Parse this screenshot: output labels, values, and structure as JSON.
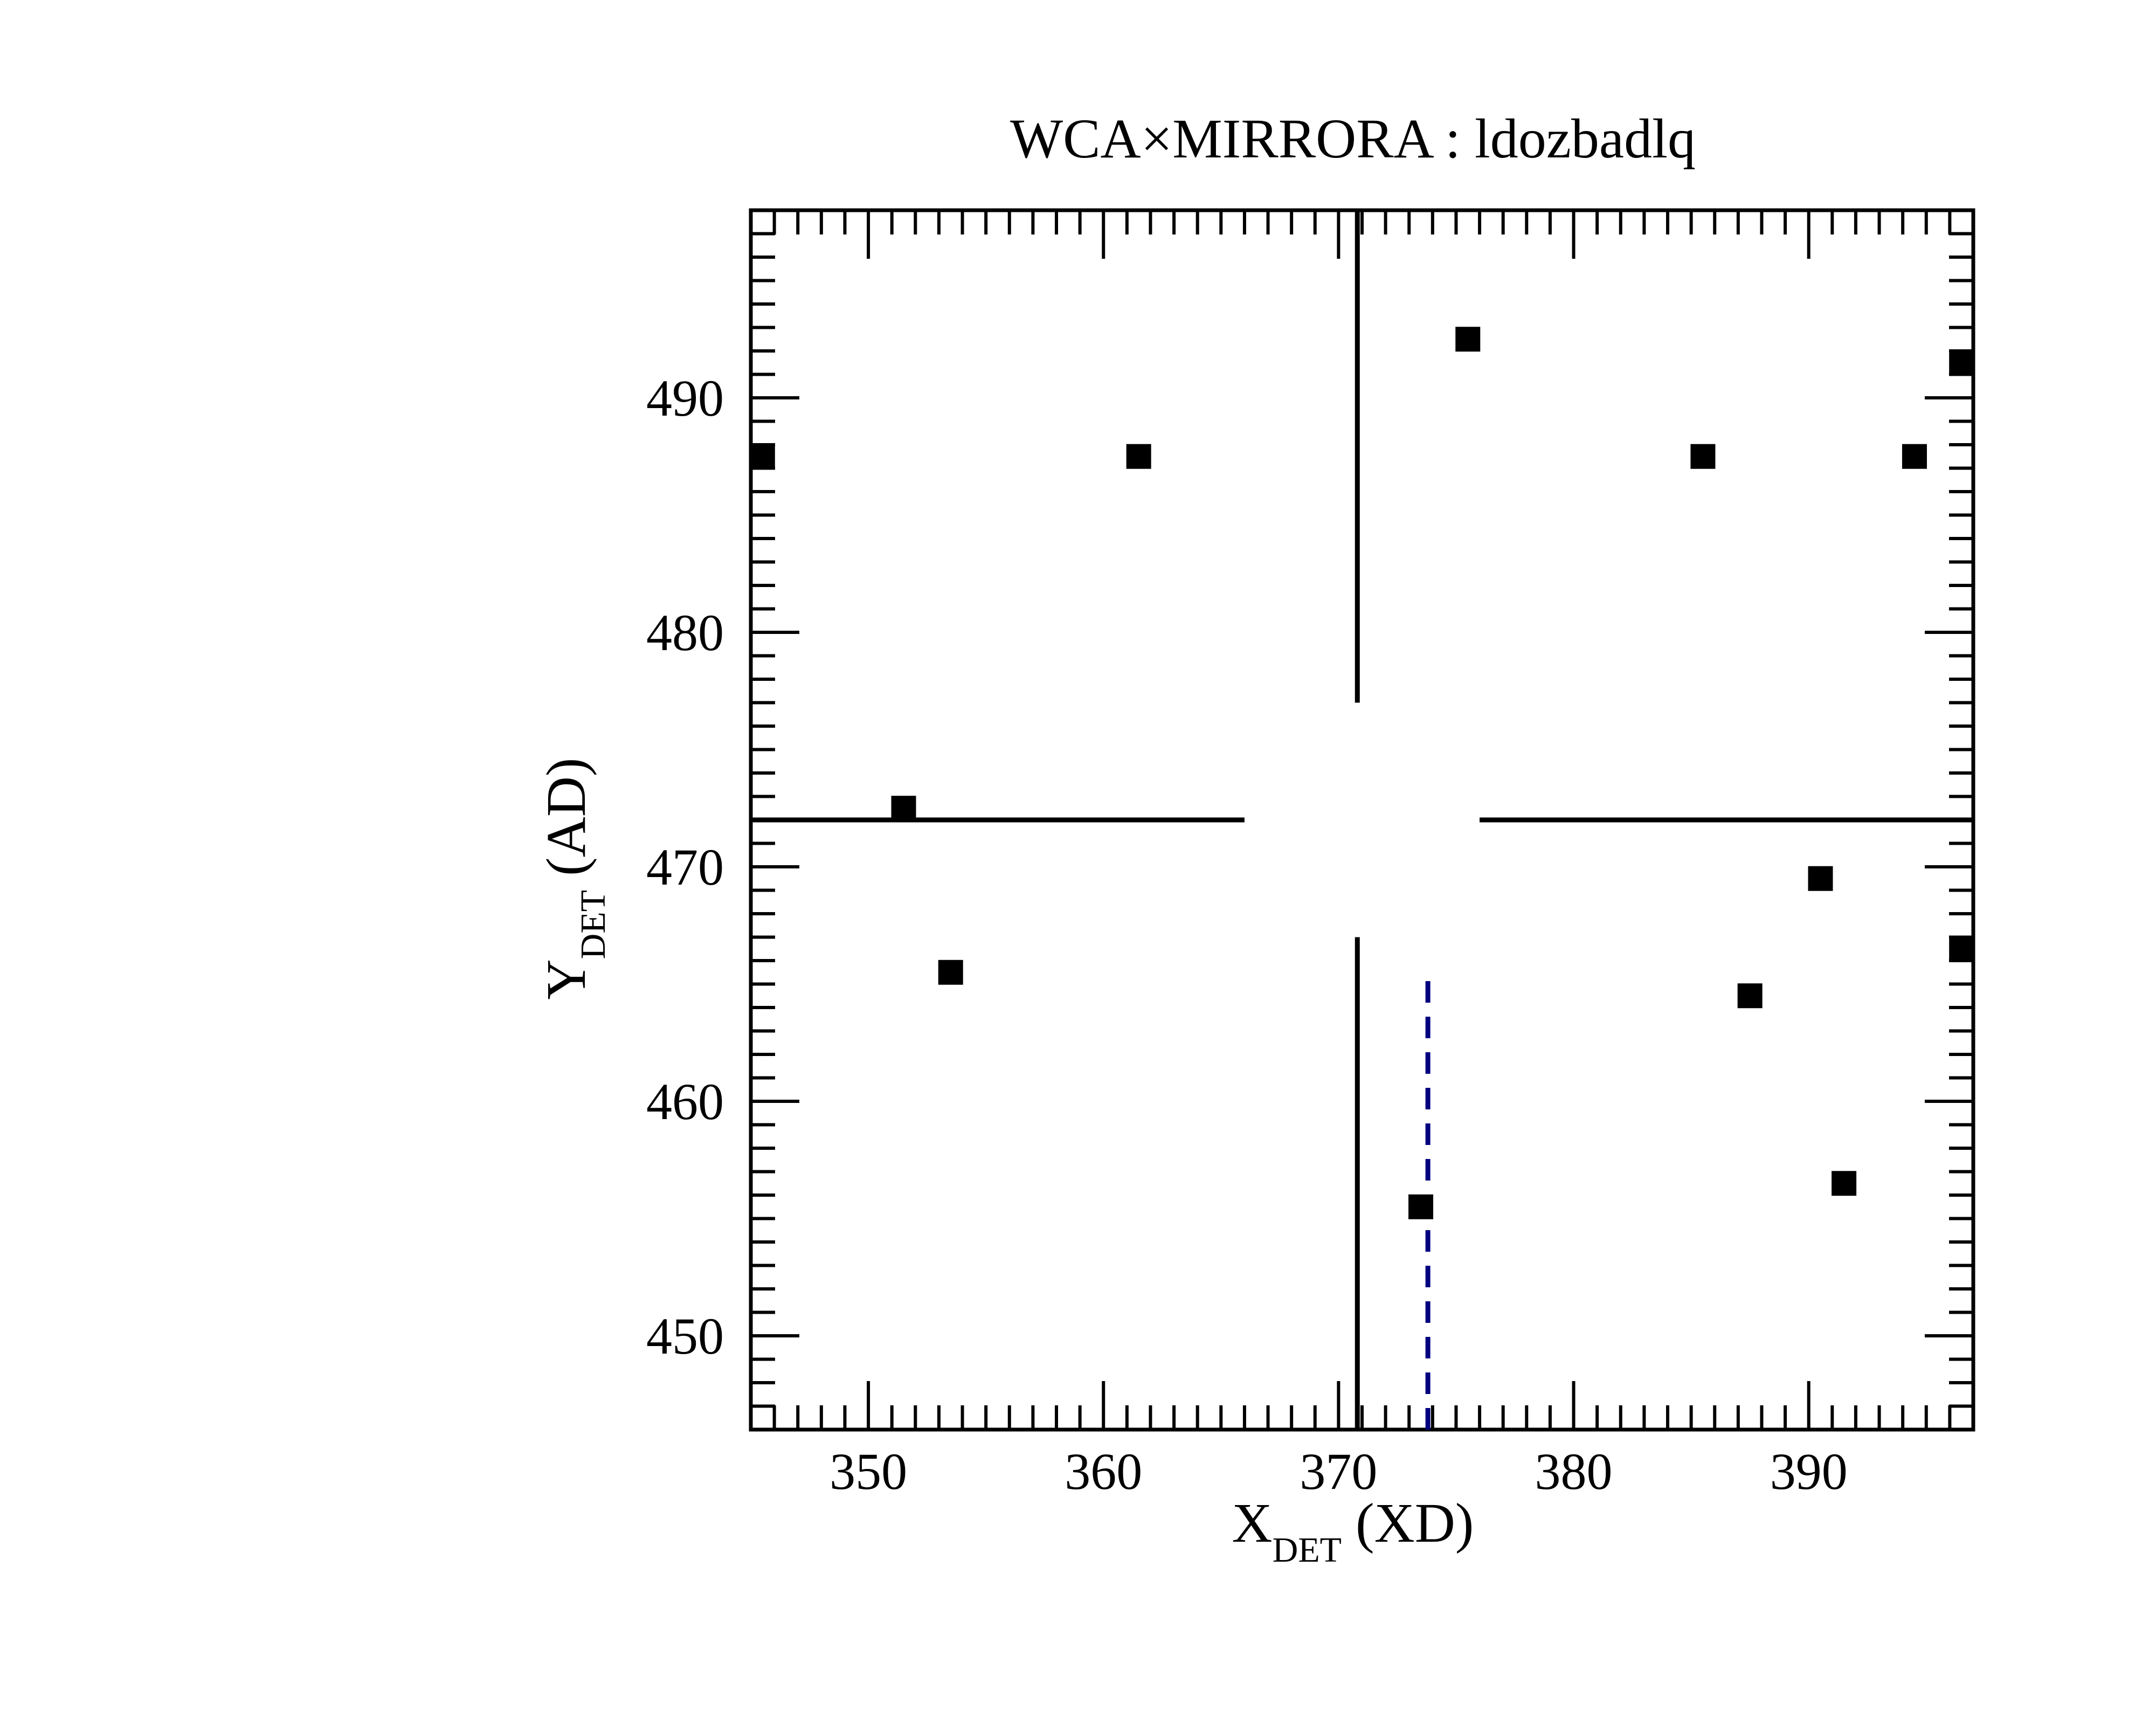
{
  "chart_data": {
    "type": "scatter",
    "title": "WCA×MIRRORA : ldozbadlq",
    "xlabel": {
      "main": "X",
      "sub": "DET",
      "suffix": " (XD)"
    },
    "ylabel": {
      "main": "Y",
      "sub": "DET",
      "suffix": " (AD)"
    },
    "xlim": [
      345,
      397
    ],
    "ylim": [
      446,
      498
    ],
    "x_ticks": [
      350,
      360,
      370,
      380,
      390
    ],
    "y_ticks": [
      450,
      460,
      470,
      480,
      490
    ],
    "grid": false,
    "marker": "square",
    "marker_color": "#000000",
    "points": [
      {
        "x": 345.5,
        "y": 487.5
      },
      {
        "x": 361.5,
        "y": 487.5
      },
      {
        "x": 375.5,
        "y": 492.5
      },
      {
        "x": 385.5,
        "y": 487.5
      },
      {
        "x": 394.5,
        "y": 487.5
      },
      {
        "x": 396.5,
        "y": 491.5
      },
      {
        "x": 351.5,
        "y": 472.5
      },
      {
        "x": 353.5,
        "y": 465.5
      },
      {
        "x": 390.5,
        "y": 469.5
      },
      {
        "x": 396.5,
        "y": 466.5
      },
      {
        "x": 387.5,
        "y": 464.5
      },
      {
        "x": 373.5,
        "y": 455.5
      },
      {
        "x": 391.5,
        "y": 456.5
      }
    ],
    "crosshair": {
      "x": 370.8,
      "y": 472,
      "gap_x": [
        366,
        376
      ],
      "gap_y": [
        467,
        477
      ],
      "color": "#000000"
    },
    "reference_line": {
      "x": 373.8,
      "y_range": [
        446,
        465.5
      ],
      "style": "dashed",
      "color": "#000080"
    }
  }
}
